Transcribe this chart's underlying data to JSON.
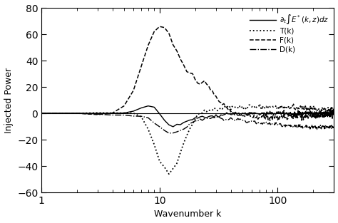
{
  "title": "",
  "xlabel": "Wavenumber k",
  "ylabel": "Injected Power",
  "xlim": [
    1,
    300
  ],
  "ylim": [
    -60,
    80
  ],
  "yticks": [
    -60,
    -40,
    -20,
    0,
    20,
    40,
    60,
    80
  ],
  "legend_labels": [
    "$\\partial_t \\int E^*(k,z)dz$",
    "T(k)",
    "F(k)",
    "D(k)"
  ],
  "background_color": "#ffffff",
  "line_color": "#000000"
}
